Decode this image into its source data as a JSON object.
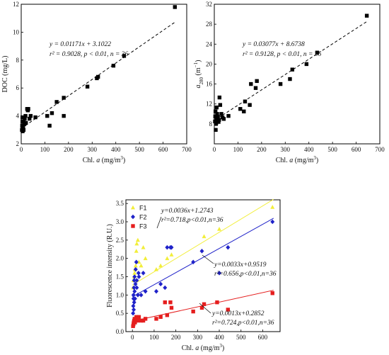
{
  "chart_data": [
    {
      "type": "scatter",
      "name": "doc-chart",
      "xlim": [
        0,
        700
      ],
      "ylim": [
        2,
        12
      ],
      "xticks": [
        "0",
        "100",
        "200",
        "300",
        "400",
        "500",
        "600",
        "700"
      ],
      "yticks": [
        "2",
        "4",
        "6",
        "8",
        "10",
        "12"
      ],
      "xlabel_pre": "Chl. ",
      "xlabel_var": "a",
      "xlabel_unit": "(mg/m",
      "xlabel_sup": "3",
      "xlabel_close": ")",
      "ylabel": "DOC  (mg/L)",
      "equation_line1": "y = 0.01171x + 3.1022",
      "equation_line2": "r² = 0.9028, p < 0.01, n = 36",
      "fit": {
        "slope": 0.01171,
        "intercept": 3.1022,
        "x_range": [
          0,
          650
        ]
      },
      "series": [
        {
          "marker": "square",
          "color": "#000000",
          "x": [
            3,
            4,
            5,
            5,
            6,
            8,
            10,
            10,
            12,
            15,
            18,
            20,
            25,
            28,
            30,
            35,
            40,
            60,
            110,
            120,
            130,
            150,
            180,
            180,
            280,
            320,
            325,
            390,
            435,
            650
          ],
          "y": [
            3.0,
            3.3,
            3.6,
            3.9,
            2.9,
            3.2,
            3.6,
            3.0,
            3.4,
            3.8,
            4.0,
            3.5,
            4.5,
            4.4,
            4.5,
            3.8,
            4.0,
            3.9,
            4.0,
            3.3,
            4.2,
            5.0,
            5.3,
            4.0,
            6.1,
            6.7,
            6.8,
            7.6,
            8.3,
            11.8
          ]
        }
      ]
    },
    {
      "type": "scatter",
      "name": "a280-chart",
      "xlim": [
        0,
        700
      ],
      "ylim": [
        4,
        32
      ],
      "xticks": [
        "0",
        "100",
        "200",
        "300",
        "400",
        "500",
        "600",
        "700"
      ],
      "yticks": [
        "8",
        "12",
        "16",
        "20",
        "24",
        "28",
        "32"
      ],
      "xlabel_pre": "Chl. ",
      "xlabel_var": "a",
      "xlabel_unit": "(mg/m",
      "xlabel_sup": "3",
      "xlabel_close": ")",
      "ylabel_var": "a",
      "ylabel_sub": "280",
      "ylabel_unit": "(m",
      "ylabel_sup": "−1",
      "ylabel_close": ")",
      "equation_line1": "y = 0.03077x + 8.6738",
      "equation_line2": "r² = 0.9128, p < 0.01, n = 36",
      "fit": {
        "slope": 0.03077,
        "intercept": 8.6738,
        "x_range": [
          0,
          650
        ]
      },
      "series": [
        {
          "marker": "square",
          "color": "#000000",
          "x": [
            3,
            4,
            5,
            6,
            7,
            8,
            10,
            10,
            12,
            15,
            18,
            20,
            22,
            25,
            30,
            35,
            40,
            60,
            110,
            125,
            130,
            150,
            155,
            175,
            180,
            280,
            320,
            330,
            390,
            435,
            645
          ],
          "y": [
            8.5,
            9.5,
            10.5,
            6.8,
            8.0,
            8.2,
            11.3,
            9.0,
            10.0,
            9.4,
            8.4,
            8.8,
            13.3,
            11.8,
            10.0,
            9.3,
            9.0,
            9.6,
            11.0,
            10.5,
            12.5,
            11.8,
            16.0,
            15.2,
            16.6,
            16.0,
            17.0,
            18.9,
            20.0,
            22.3,
            29.7
          ]
        }
      ]
    },
    {
      "type": "scatter",
      "name": "fluorescence-chart",
      "xlim": [
        -30,
        680
      ],
      "ylim": [
        0,
        3.6
      ],
      "xticks": [
        "0",
        "100",
        "200",
        "300",
        "400",
        "500",
        "600"
      ],
      "yticks": [
        "0.0",
        "0.5",
        "1.0",
        "1.5",
        "2.0",
        "2.5",
        "3.0",
        "3.5"
      ],
      "xlabel_pre": "Chl. ",
      "xlabel_var": "a",
      "xlabel_unit": "(mg/m",
      "xlabel_sup": "3",
      "xlabel_close": ")",
      "ylabel": "Fluorescence intensity  (R.U.)",
      "legend_position": "top-left",
      "series": [
        {
          "name": "F1",
          "marker": "triangle",
          "color": "#f2ee3a",
          "equation_line1": "y=0.0036x+1.2743",
          "equation_line2": "r²=0.718,p<0.01,n=36",
          "fit": {
            "slope": 0.0036,
            "intercept": 1.2743,
            "x_range": [
              0,
              650
            ]
          },
          "x": [
            3,
            5,
            8,
            10,
            12,
            15,
            18,
            20,
            25,
            30,
            40,
            50,
            60,
            110,
            130,
            160,
            180,
            330,
            400,
            645
          ],
          "y": [
            1.2,
            1.4,
            1.5,
            1.6,
            1.7,
            1.8,
            2.2,
            2.4,
            2.5,
            1.9,
            1.8,
            2.3,
            2.0,
            1.7,
            1.8,
            2.0,
            2.1,
            2.6,
            2.8,
            3.4
          ]
        },
        {
          "name": "F2",
          "marker": "diamond",
          "color": "#1f22c9",
          "equation_line1": "y=0.0033x+0.9519",
          "equation_line2": "r²=0.656,p<0.01,n=36",
          "fit": {
            "slope": 0.0033,
            "intercept": 0.9519,
            "x_range": [
              0,
              650
            ]
          },
          "x": [
            3,
            4,
            5,
            5,
            6,
            7,
            8,
            8,
            10,
            10,
            12,
            14,
            15,
            18,
            20,
            20,
            25,
            28,
            30,
            40,
            50,
            60,
            110,
            130,
            150,
            160,
            175,
            180,
            280,
            320,
            400,
            440,
            645
          ],
          "y": [
            0.5,
            0.7,
            0.9,
            1.0,
            0.6,
            1.2,
            1.4,
            0.8,
            1.1,
            1.5,
            0.9,
            1.3,
            1.7,
            1.9,
            1.2,
            1.4,
            1.0,
            1.6,
            1.5,
            1.0,
            1.6,
            1.1,
            1.1,
            1.3,
            1.2,
            2.3,
            2.3,
            2.3,
            1.9,
            2.2,
            1.6,
            2.3,
            3.0
          ]
        },
        {
          "name": "F3",
          "marker": "square",
          "color": "#e51e1e",
          "equation_line1": "y=0.0013x+0.2852",
          "equation_line2": "r²=0.724,p<0.01,n=36",
          "fit": {
            "slope": 0.0013,
            "intercept": 0.2852,
            "x_range": [
              0,
              650
            ]
          },
          "x": [
            3,
            5,
            6,
            8,
            10,
            12,
            15,
            18,
            20,
            25,
            30,
            40,
            50,
            60,
            110,
            130,
            150,
            160,
            175,
            180,
            280,
            320,
            330,
            390,
            440,
            645
          ],
          "y": [
            0.15,
            0.2,
            0.25,
            0.3,
            0.35,
            0.25,
            0.3,
            0.4,
            0.35,
            0.3,
            0.4,
            0.3,
            0.3,
            0.35,
            0.35,
            0.4,
            0.8,
            0.45,
            0.8,
            0.65,
            0.55,
            0.65,
            0.75,
            0.8,
            0.6,
            1.05
          ]
        }
      ]
    }
  ]
}
